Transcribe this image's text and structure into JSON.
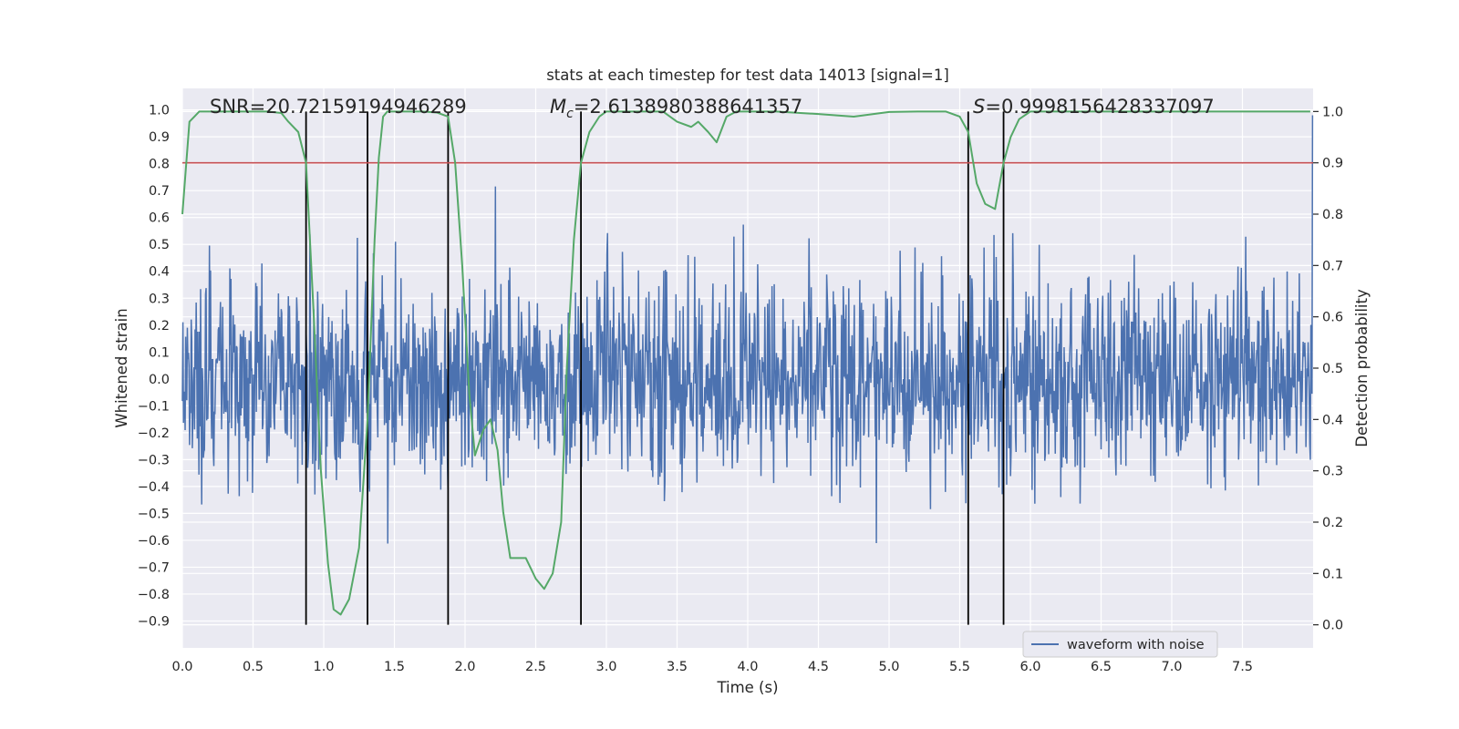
{
  "chart_data": {
    "type": "line",
    "title": "stats at each timestep for test data 14013 [signal=1]",
    "xlabel": "Time (s)",
    "ylabel_left": "Whitened strain",
    "ylabel_right": "Detection probability",
    "xlim": [
      0,
      8
    ],
    "ylim_left": [
      -1.0,
      1.08
    ],
    "ylim_right": [
      -0.045,
      1.045
    ],
    "grid": true,
    "x_ticks": [
      0.0,
      0.5,
      1.0,
      1.5,
      2.0,
      2.5,
      3.0,
      3.5,
      4.0,
      4.5,
      5.0,
      5.5,
      6.0,
      6.5,
      7.0,
      7.5
    ],
    "x_tick_labels": [
      "0.0",
      "0.5",
      "1.0",
      "1.5",
      "2.0",
      "2.5",
      "3.0",
      "3.5",
      "4.0",
      "4.5",
      "5.0",
      "5.5",
      "6.0",
      "6.5",
      "7.0",
      "7.5"
    ],
    "y_left_ticks": [
      1.0,
      0.9,
      0.8,
      0.7,
      0.6,
      0.5,
      0.4,
      0.3,
      0.2,
      0.1,
      0.0,
      -0.1,
      -0.2,
      -0.3,
      -0.4,
      -0.5,
      -0.6,
      -0.7,
      -0.8,
      -0.9
    ],
    "y_left_tick_labels": [
      "1.0",
      "0.9",
      "0.8",
      "0.7",
      "0.6",
      "0.5",
      "0.4",
      "0.3",
      "0.2",
      "0.1",
      "0.0",
      "−0.1",
      "−0.2",
      "−0.3",
      "−0.4",
      "−0.5",
      "−0.6",
      "−0.7",
      "−0.8",
      "−0.9"
    ],
    "y_right_ticks": [
      1.0,
      0.9,
      0.8,
      0.7,
      0.6,
      0.5,
      0.4,
      0.3,
      0.2,
      0.1,
      0.0
    ],
    "y_right_tick_labels": [
      "1.0",
      "0.9",
      "0.8",
      "0.7",
      "0.6",
      "0.5",
      "0.4",
      "0.3",
      "0.2",
      "0.1",
      "0.0"
    ],
    "annotations": {
      "snr": "SNR=20.72159194946289",
      "mc_symbol": "M",
      "mc_subscript": "c",
      "mc_value": "=2.6138980388641357",
      "s_symbol": "S",
      "s_value": "=0.9998156428337097"
    },
    "threshold": {
      "value": 0.9,
      "axis": "right",
      "color": "#c44e52"
    },
    "vertical_lines": [
      0.875,
      1.31,
      1.88,
      2.82,
      5.56,
      5.81
    ],
    "vertical_line_range_right": [
      0.0,
      1.0
    ],
    "waveform": {
      "name": "waveform with noise",
      "color": "#4c72b0",
      "n_samples": 2048,
      "noise_std": 0.19,
      "final_spike": 0.98
    },
    "probability": {
      "color": "#55a868",
      "x": [
        0.0,
        0.05,
        0.12,
        0.2,
        0.3,
        0.4,
        0.5,
        0.6,
        0.7,
        0.75,
        0.82,
        0.875,
        0.93,
        0.98,
        1.03,
        1.07,
        1.12,
        1.18,
        1.25,
        1.31,
        1.36,
        1.39,
        1.42,
        1.45,
        1.5,
        1.6,
        1.7,
        1.8,
        1.88,
        1.93,
        1.98,
        2.03,
        2.07,
        2.13,
        2.18,
        2.23,
        2.27,
        2.32,
        2.38,
        2.43,
        2.5,
        2.56,
        2.62,
        2.68,
        2.72,
        2.77,
        2.82,
        2.88,
        2.95,
        3.0,
        3.1,
        3.2,
        3.3,
        3.4,
        3.5,
        3.6,
        3.65,
        3.72,
        3.78,
        3.85,
        3.92,
        4.0,
        4.2,
        4.5,
        4.75,
        5.0,
        5.2,
        5.4,
        5.5,
        5.56,
        5.62,
        5.68,
        5.75,
        5.81,
        5.86,
        5.92,
        6.0,
        6.1,
        6.2,
        6.5,
        7.0,
        7.5,
        7.98
      ],
      "y": [
        0.8,
        0.98,
        1.0,
        1.0,
        1.0,
        1.0,
        1.0,
        1.0,
        0.997,
        0.98,
        0.96,
        0.9,
        0.6,
        0.3,
        0.12,
        0.03,
        0.02,
        0.05,
        0.15,
        0.4,
        0.75,
        0.91,
        0.99,
        1.0,
        1.0,
        1.0,
        1.0,
        0.998,
        0.99,
        0.9,
        0.7,
        0.45,
        0.33,
        0.38,
        0.4,
        0.34,
        0.22,
        0.13,
        0.13,
        0.13,
        0.09,
        0.07,
        0.1,
        0.2,
        0.5,
        0.75,
        0.9,
        0.96,
        0.99,
        1.0,
        1.0,
        1.0,
        1.0,
        1.0,
        0.98,
        0.97,
        0.98,
        0.96,
        0.94,
        0.99,
        1.0,
        1.0,
        1.0,
        0.995,
        0.99,
        0.999,
        1.0,
        1.0,
        0.99,
        0.96,
        0.86,
        0.82,
        0.81,
        0.9,
        0.95,
        0.985,
        1.0,
        1.0,
        1.0,
        1.0,
        1.0,
        1.0,
        1.0
      ]
    },
    "legend": {
      "placement": "lower-right",
      "entries": [
        "waveform with noise"
      ]
    }
  }
}
